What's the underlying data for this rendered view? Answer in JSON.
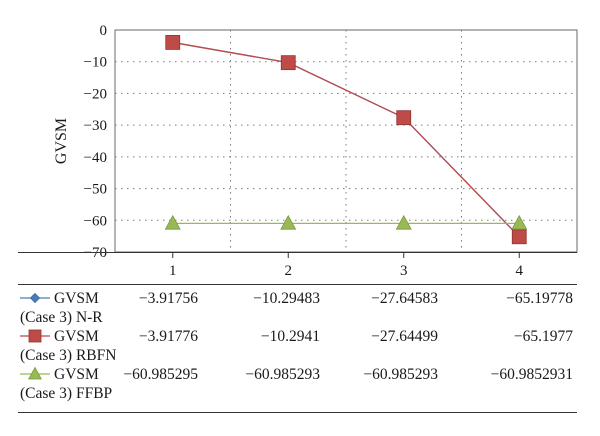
{
  "chart_data": {
    "type": "line",
    "title": "",
    "xlabel": "",
    "ylabel": "GVSM",
    "categories": [
      "1",
      "2",
      "3",
      "4"
    ],
    "ylim": [
      -70,
      0
    ],
    "yticks": [
      0,
      -10,
      -20,
      -30,
      -40,
      -50,
      -60,
      -70
    ],
    "ytick_labels": [
      "0",
      "−10",
      "−20",
      "−30",
      "−40",
      "−50",
      "−60",
      "−70"
    ],
    "grid": true,
    "legend_placement": "bottom-table",
    "series": [
      {
        "name_line1": "GVSM",
        "name_line2": "(Case 3) N-R",
        "marker": "diamond",
        "color": "#4a7ebb",
        "values": [
          -3.91756,
          -10.29483,
          -27.64583,
          -65.19778
        ],
        "value_labels": [
          "−3.91756",
          "−10.29483",
          "−27.64583",
          "−65.19778"
        ]
      },
      {
        "name_line1": "GVSM",
        "name_line2": "(Case 3) RBFN",
        "marker": "square",
        "color": "#be4b48",
        "values": [
          -3.91776,
          -10.2941,
          -27.64499,
          -65.1977
        ],
        "value_labels": [
          "−3.91776",
          "−10.2941",
          "−27.64499",
          "−65.1977"
        ]
      },
      {
        "name_line1": "GVSM",
        "name_line2": "(Case 3) FFBP",
        "marker": "triangle",
        "color": "#98b954",
        "values": [
          -60.985295,
          -60.985293,
          -60.985293,
          -60.9852931
        ],
        "value_labels": [
          "−60.985295",
          "−60.985293",
          "−60.985293",
          "−60.9852931"
        ]
      }
    ]
  }
}
